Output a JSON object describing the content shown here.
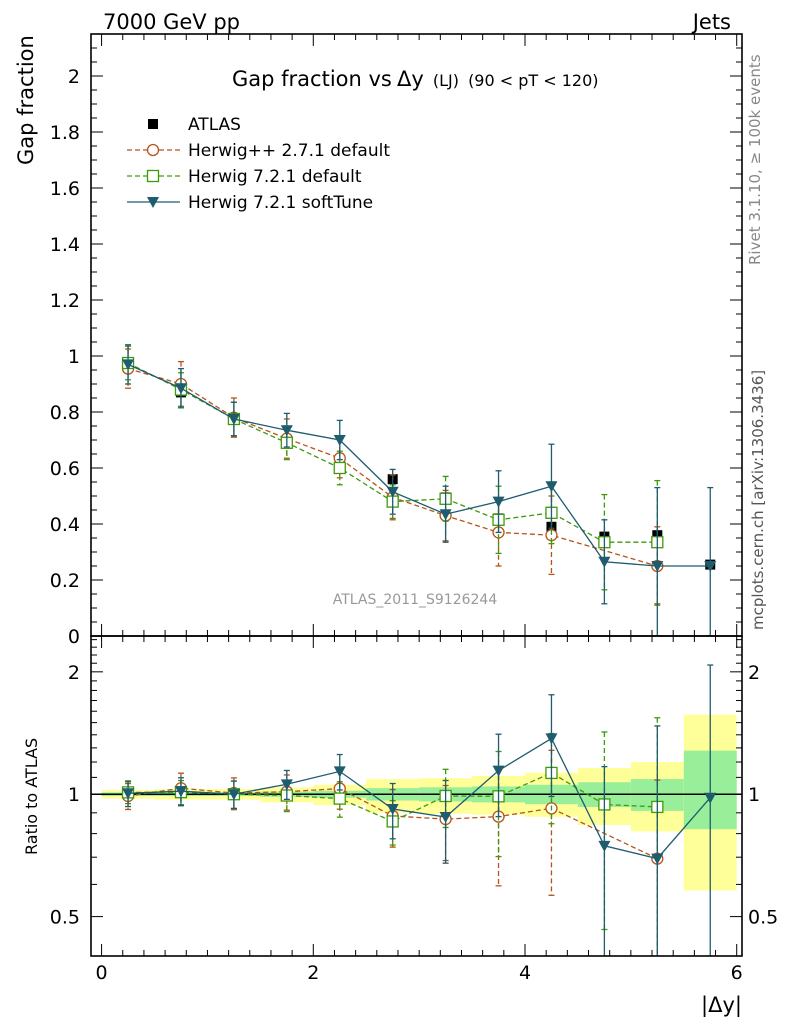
{
  "header": {
    "left": "7000 GeV pp",
    "right": "Jets"
  },
  "side_labels": {
    "rivet": "Rivet 3.1.10, ≥ 100k events",
    "mcplots": "mcplots.cern.ch [arXiv:1306.3436]"
  },
  "chart_data": {
    "type": "scatter",
    "title_main": "Gap fraction vs",
    "title_var": "Δy",
    "title_sub": "(LJ)",
    "title_cut": "(90 < pT < 120)",
    "analysis_tag": "ATLAS_2011_S9126244",
    "xlabel": "|Δy|",
    "ylabel": "Gap fraction",
    "ratio_ylabel": "Ratio to ATLAS",
    "xlim": [
      -0.1,
      6.05
    ],
    "ylim": [
      0,
      2.15
    ],
    "ratio_ylim": [
      0.4,
      2.45
    ],
    "ratio_scale": "log",
    "x_ticks": [
      "0",
      "2",
      "4",
      "6"
    ],
    "y_ticks": [
      "0",
      "0.2",
      "0.4",
      "0.6",
      "0.8",
      "1",
      "1.2",
      "1.4",
      "1.6",
      "1.8",
      "2"
    ],
    "ratio_ticks": [
      "0.5",
      "1",
      "2"
    ],
    "x": [
      0.25,
      0.75,
      1.25,
      1.75,
      2.25,
      2.75,
      3.25,
      3.75,
      4.25,
      4.75,
      5.25,
      5.75
    ],
    "data": {
      "name": "ATLAS",
      "color": "#000000",
      "y": [
        0.965,
        0.87,
        0.775,
        0.695,
        0.615,
        0.56,
        0.495,
        0.42,
        0.39,
        0.355,
        0.36,
        0.255
      ]
    },
    "band": {
      "yellow_lo": [
        0.975,
        0.97,
        0.97,
        0.955,
        0.94,
        0.9,
        0.895,
        0.89,
        0.88,
        0.84,
        0.81,
        0.58
      ],
      "yellow_hi": [
        1.025,
        1.03,
        1.03,
        1.04,
        1.055,
        1.09,
        1.095,
        1.11,
        1.13,
        1.16,
        1.2,
        1.57
      ],
      "green_lo": [
        0.99,
        0.99,
        0.99,
        0.985,
        0.98,
        0.965,
        0.96,
        0.955,
        0.945,
        0.93,
        0.91,
        0.82
      ],
      "green_hi": [
        1.01,
        1.01,
        1.01,
        1.015,
        1.02,
        1.035,
        1.04,
        1.045,
        1.055,
        1.07,
        1.09,
        1.28
      ]
    },
    "series": [
      {
        "name": "Herwig++ 2.7.1 default",
        "color": "#b5541a",
        "marker": "circle-open",
        "line": "dashed",
        "y": [
          0.955,
          0.9,
          0.78,
          0.705,
          0.635,
          0.495,
          0.43,
          0.37,
          0.36,
          null,
          0.25,
          null
        ],
        "err": [
          0.07,
          0.08,
          0.07,
          0.07,
          0.07,
          0.08,
          0.09,
          0.12,
          0.14,
          null,
          0.14,
          null
        ]
      },
      {
        "name": "Herwig 7.2.1 default",
        "color": "#3d9a0c",
        "marker": "square-open",
        "line": "dashed",
        "y": [
          0.975,
          0.88,
          0.775,
          0.69,
          0.6,
          0.48,
          0.49,
          0.415,
          0.44,
          0.335,
          0.335,
          null
        ],
        "err": [
          0.06,
          0.06,
          0.06,
          0.06,
          0.06,
          0.06,
          0.08,
          0.12,
          0.11,
          0.17,
          0.22,
          null
        ]
      },
      {
        "name": "Herwig 7.2.1 softTune",
        "color": "#1e5c6e",
        "marker": "triangle-down",
        "line": "solid",
        "y": [
          0.97,
          0.885,
          0.775,
          0.735,
          0.7,
          0.515,
          0.435,
          0.48,
          0.535,
          0.265,
          0.25,
          0.25
        ],
        "err": [
          0.07,
          0.07,
          0.06,
          0.06,
          0.07,
          0.08,
          0.1,
          0.11,
          0.15,
          0.15,
          0.28,
          0.28
        ]
      }
    ]
  }
}
